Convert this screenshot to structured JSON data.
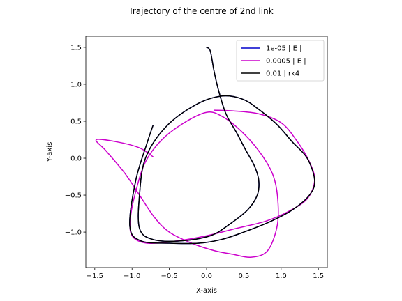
{
  "chart_data": {
    "type": "line",
    "title": "Trajectory of the centre of 2nd link",
    "xlabel": "X-axis",
    "ylabel": "Y-axis",
    "xlim": [
      -1.62,
      1.62
    ],
    "ylim": [
      -1.48,
      1.65
    ],
    "xticks": [
      -1.5,
      -1.0,
      -0.5,
      0.0,
      0.5,
      1.0,
      1.5
    ],
    "xtick_labels": [
      "−1.5",
      "−1.0",
      "−0.5",
      "0.0",
      "0.5",
      "1.0",
      "1.5"
    ],
    "yticks": [
      -1.0,
      -0.5,
      0.0,
      0.5,
      1.0,
      1.5
    ],
    "ytick_labels": [
      "−1.0",
      "−0.5",
      "0.0",
      "0.5",
      "1.0",
      "1.5"
    ],
    "grid": false,
    "legend_position": "top-right",
    "series": [
      {
        "name": "1e-05 | E |",
        "color": "#0000cc",
        "points": [
          [
            0.0,
            1.5
          ],
          [
            0.05,
            1.45
          ],
          [
            0.1,
            1.18
          ],
          [
            0.16,
            0.92
          ],
          [
            0.26,
            0.6
          ],
          [
            0.4,
            0.35
          ],
          [
            0.52,
            0.12
          ],
          [
            0.64,
            -0.1
          ],
          [
            0.7,
            -0.3
          ],
          [
            0.68,
            -0.5
          ],
          [
            0.55,
            -0.7
          ],
          [
            0.3,
            -0.9
          ],
          [
            0.05,
            -1.05
          ],
          [
            -0.35,
            -1.12
          ],
          [
            -0.72,
            -1.1
          ],
          [
            -0.9,
            -0.95
          ],
          [
            -0.9,
            -0.5
          ],
          [
            -0.82,
            0.0
          ],
          [
            -0.55,
            0.42
          ],
          [
            -0.15,
            0.72
          ],
          [
            0.2,
            0.84
          ],
          [
            0.48,
            0.8
          ],
          [
            0.7,
            0.66
          ],
          [
            0.95,
            0.45
          ],
          [
            1.15,
            0.22
          ],
          [
            1.35,
            0.0
          ],
          [
            1.45,
            -0.3
          ],
          [
            1.38,
            -0.5
          ],
          [
            1.15,
            -0.7
          ],
          [
            0.85,
            -0.86
          ],
          [
            0.5,
            -1.0
          ],
          [
            0.2,
            -1.1
          ],
          [
            -0.1,
            -1.15
          ],
          [
            -0.5,
            -1.15
          ],
          [
            -0.88,
            -1.12
          ],
          [
            -1.03,
            -0.92
          ],
          [
            -0.95,
            -0.3
          ],
          [
            -0.8,
            0.2
          ],
          [
            -0.72,
            0.44
          ]
        ]
      },
      {
        "name": "0.0005 | E |",
        "color": "#cc00cc",
        "points": [
          [
            -0.72,
            0.02
          ],
          [
            -0.9,
            0.14
          ],
          [
            -1.2,
            0.22
          ],
          [
            -1.48,
            0.25
          ],
          [
            -1.35,
            0.1
          ],
          [
            -1.1,
            -0.2
          ],
          [
            -0.9,
            -0.5
          ],
          [
            -0.7,
            -0.8
          ],
          [
            -0.5,
            -1.0
          ],
          [
            -0.2,
            -1.15
          ],
          [
            0.1,
            -1.25
          ],
          [
            0.35,
            -1.3
          ],
          [
            0.6,
            -1.34
          ],
          [
            0.82,
            -1.25
          ],
          [
            0.95,
            -0.9
          ],
          [
            0.95,
            -0.5
          ],
          [
            0.88,
            -0.2
          ],
          [
            0.7,
            0.1
          ],
          [
            0.45,
            0.38
          ],
          [
            0.2,
            0.57
          ],
          [
            0.0,
            0.62
          ],
          [
            -0.3,
            0.48
          ],
          [
            -0.6,
            0.25
          ],
          [
            -0.82,
            -0.05
          ],
          [
            -0.95,
            -0.45
          ],
          [
            -1.02,
            -0.8
          ],
          [
            -1.0,
            -1.05
          ],
          [
            -0.8,
            -1.15
          ],
          [
            -0.4,
            -1.12
          ],
          [
            0.0,
            -1.05
          ],
          [
            0.4,
            -0.95
          ],
          [
            0.8,
            -0.85
          ],
          [
            1.1,
            -0.72
          ],
          [
            1.35,
            -0.55
          ],
          [
            1.45,
            -0.3
          ],
          [
            1.38,
            -0.05
          ],
          [
            1.2,
            0.25
          ],
          [
            1.0,
            0.48
          ],
          [
            0.7,
            0.6
          ],
          [
            0.35,
            0.64
          ],
          [
            0.1,
            0.65
          ]
        ]
      },
      {
        "name": "0.01 | rk4",
        "color": "#000000",
        "points": [
          [
            0.0,
            1.5
          ],
          [
            0.05,
            1.45
          ],
          [
            0.1,
            1.18
          ],
          [
            0.16,
            0.92
          ],
          [
            0.26,
            0.6
          ],
          [
            0.4,
            0.35
          ],
          [
            0.52,
            0.12
          ],
          [
            0.64,
            -0.1
          ],
          [
            0.7,
            -0.3
          ],
          [
            0.68,
            -0.5
          ],
          [
            0.55,
            -0.7
          ],
          [
            0.3,
            -0.9
          ],
          [
            0.05,
            -1.05
          ],
          [
            -0.35,
            -1.12
          ],
          [
            -0.72,
            -1.1
          ],
          [
            -0.9,
            -0.95
          ],
          [
            -0.9,
            -0.5
          ],
          [
            -0.82,
            0.0
          ],
          [
            -0.55,
            0.42
          ],
          [
            -0.15,
            0.72
          ],
          [
            0.2,
            0.84
          ],
          [
            0.48,
            0.8
          ],
          [
            0.7,
            0.66
          ],
          [
            0.95,
            0.45
          ],
          [
            1.15,
            0.22
          ],
          [
            1.35,
            0.0
          ],
          [
            1.45,
            -0.3
          ],
          [
            1.38,
            -0.5
          ],
          [
            1.15,
            -0.7
          ],
          [
            0.85,
            -0.86
          ],
          [
            0.5,
            -1.0
          ],
          [
            0.2,
            -1.1
          ],
          [
            -0.1,
            -1.15
          ],
          [
            -0.5,
            -1.15
          ],
          [
            -0.88,
            -1.12
          ],
          [
            -1.03,
            -0.92
          ],
          [
            -0.95,
            -0.3
          ],
          [
            -0.8,
            0.2
          ],
          [
            -0.72,
            0.44
          ]
        ]
      }
    ]
  }
}
